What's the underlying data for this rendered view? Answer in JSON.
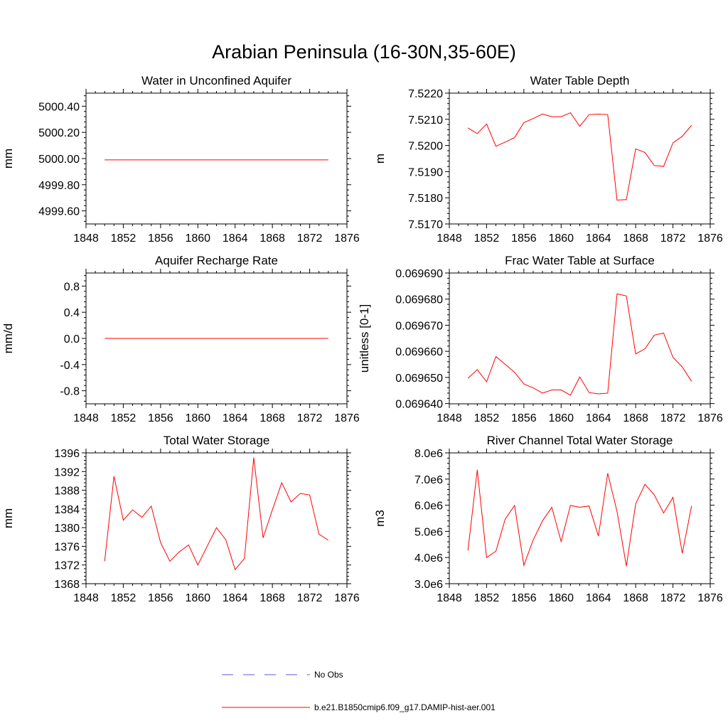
{
  "figure": {
    "title": "Arabian Peninsula (16-30N,35-60E)",
    "line_color": "#ff0000",
    "obs_color": "#5a5adc"
  },
  "legend": {
    "items": [
      {
        "label": "No Obs",
        "style": "dashed",
        "color": "#5a5adc"
      },
      {
        "label": "b.e21.B1850cmip6.f09_g17.DAMIP-hist-aer.001",
        "style": "solid",
        "color": "#ff0000"
      }
    ]
  },
  "chart_data": [
    {
      "type": "line",
      "title": "Water in Unconfined Aquifer",
      "ylabel": "mm",
      "xlim": [
        1848,
        1876
      ],
      "ylim": [
        4999.5,
        5000.5
      ],
      "x_ticks": [
        1848,
        1852,
        1856,
        1860,
        1864,
        1868,
        1872,
        1876
      ],
      "y_ticks": [
        4999.6,
        4999.8,
        5000.0,
        5000.2,
        5000.4
      ],
      "y_tick_labels": [
        "4999.60",
        "4999.80",
        "5000.00",
        "5000.20",
        "5000.40"
      ],
      "series": [
        {
          "x": [
            1850,
            1874
          ],
          "values": [
            4999.99,
            4999.99
          ]
        }
      ]
    },
    {
      "type": "line",
      "title": "Water Table Depth",
      "ylabel": "m",
      "xlim": [
        1848,
        1876
      ],
      "ylim": [
        7.517,
        7.522
      ],
      "x_ticks": [
        1848,
        1852,
        1856,
        1860,
        1864,
        1868,
        1872,
        1876
      ],
      "y_ticks": [
        7.517,
        7.518,
        7.519,
        7.52,
        7.521,
        7.522
      ],
      "y_tick_labels": [
        "7.5170",
        "7.5180",
        "7.5190",
        "7.5200",
        "7.5210",
        "7.5220"
      ],
      "series": [
        {
          "x": [
            1850,
            1851,
            1852,
            1853,
            1854,
            1855,
            1856,
            1857,
            1858,
            1859,
            1860,
            1861,
            1862,
            1863,
            1864,
            1865,
            1866,
            1867,
            1868,
            1869,
            1870,
            1871,
            1872,
            1873,
            1874
          ],
          "values": [
            7.52067,
            7.52045,
            7.52082,
            7.51997,
            7.52013,
            7.5203,
            7.52087,
            7.52103,
            7.5212,
            7.5211,
            7.5211,
            7.52125,
            7.52073,
            7.52118,
            7.5212,
            7.52118,
            7.51791,
            7.51793,
            7.51987,
            7.51973,
            7.51923,
            7.5192,
            7.5201,
            7.52035,
            7.52077
          ]
        }
      ]
    },
    {
      "type": "line",
      "title": "Aquifer Recharge Rate",
      "ylabel": "mm/d",
      "xlim": [
        1848,
        1876
      ],
      "ylim": [
        -1.0,
        1.0
      ],
      "x_ticks": [
        1848,
        1852,
        1856,
        1860,
        1864,
        1868,
        1872,
        1876
      ],
      "y_ticks": [
        -0.8,
        -0.4,
        0.0,
        0.4,
        0.8
      ],
      "y_tick_labels": [
        "-0.8",
        "-0.4",
        "0.0",
        "0.4",
        "0.8"
      ],
      "series": [
        {
          "x": [
            1850,
            1874
          ],
          "values": [
            0.0,
            0.0
          ]
        }
      ]
    },
    {
      "type": "line",
      "title": "Frac Water Table at Surface",
      "ylabel": "unitless [0-1]",
      "xlim": [
        1848,
        1876
      ],
      "ylim": [
        0.0696399,
        0.06969
      ],
      "x_ticks": [
        1848,
        1852,
        1856,
        1860,
        1864,
        1868,
        1872,
        1876
      ],
      "y_ticks": [
        0.06964,
        0.06965,
        0.06966,
        0.06967,
        0.06968,
        0.06969
      ],
      "y_tick_labels": [
        "0.069640",
        "0.069650",
        "0.069660",
        "0.069670",
        "0.069680",
        "0.069690"
      ],
      "series": [
        {
          "x": [
            1850,
            1851,
            1852,
            1853,
            1854,
            1855,
            1856,
            1857,
            1858,
            1859,
            1860,
            1861,
            1862,
            1863,
            1864,
            1865,
            1866,
            1867,
            1868,
            1869,
            1870,
            1871,
            1872,
            1873,
            1874
          ],
          "values": [
            0.0696497,
            0.069653,
            0.0696483,
            0.069658,
            0.069655,
            0.069652,
            0.0696475,
            0.069646,
            0.069644,
            0.0696452,
            0.0696452,
            0.0696432,
            0.0696502,
            0.0696442,
            0.0696437,
            0.069644,
            0.069682,
            0.0696812,
            0.069659,
            0.069661,
            0.0696662,
            0.069667,
            0.0696577,
            0.069654,
            0.0696485
          ]
        }
      ]
    },
    {
      "type": "line",
      "title": "Total Water Storage",
      "ylabel": "mm",
      "xlim": [
        1848,
        1876
      ],
      "ylim": [
        1368,
        1396
      ],
      "x_ticks": [
        1848,
        1852,
        1856,
        1860,
        1864,
        1868,
        1872,
        1876
      ],
      "y_ticks": [
        1368,
        1372,
        1376,
        1380,
        1384,
        1388,
        1392,
        1396
      ],
      "y_tick_labels": [
        "1368",
        "1372",
        "1376",
        "1380",
        "1384",
        "1388",
        "1392",
        "1396"
      ],
      "series": [
        {
          "x": [
            1850,
            1851,
            1852,
            1853,
            1854,
            1855,
            1856,
            1857,
            1858,
            1859,
            1860,
            1861,
            1862,
            1863,
            1864,
            1865,
            1866,
            1867,
            1868,
            1869,
            1870,
            1871,
            1872,
            1873,
            1874
          ],
          "values": [
            1372.8,
            1391.0,
            1381.6,
            1383.8,
            1382.2,
            1384.6,
            1376.8,
            1372.8,
            1374.8,
            1376.3,
            1372.0,
            1376.0,
            1380.0,
            1377.4,
            1371.0,
            1373.4,
            1395.0,
            1377.8,
            1383.8,
            1389.6,
            1385.5,
            1387.3,
            1387.0,
            1378.6,
            1377.3
          ]
        }
      ]
    },
    {
      "type": "line",
      "title": "River Channel Total Water Storage",
      "ylabel": "m3",
      "xlim": [
        1848,
        1876
      ],
      "ylim": [
        3000000,
        8000000
      ],
      "x_ticks": [
        1848,
        1852,
        1856,
        1860,
        1864,
        1868,
        1872,
        1876
      ],
      "y_ticks": [
        3000000,
        4000000,
        5000000,
        6000000,
        7000000,
        8000000
      ],
      "y_tick_labels": [
        "3.0e6",
        "4.0e6",
        "5.0e6",
        "6.0e6",
        "7.0e6",
        "8.0e6"
      ],
      "series": [
        {
          "x": [
            1850,
            1851,
            1852,
            1853,
            1854,
            1855,
            1856,
            1857,
            1858,
            1859,
            1860,
            1861,
            1862,
            1863,
            1864,
            1865,
            1866,
            1867,
            1868,
            1869,
            1870,
            1871,
            1872,
            1873,
            1874
          ],
          "values": [
            4270000,
            7350000,
            4000000,
            4240000,
            5470000,
            5990000,
            3700000,
            4670000,
            5400000,
            5920000,
            4610000,
            5990000,
            5920000,
            5970000,
            4820000,
            7220000,
            5760000,
            3670000,
            6050000,
            6800000,
            6390000,
            5700000,
            6300000,
            4160000,
            5970000
          ]
        }
      ]
    }
  ]
}
